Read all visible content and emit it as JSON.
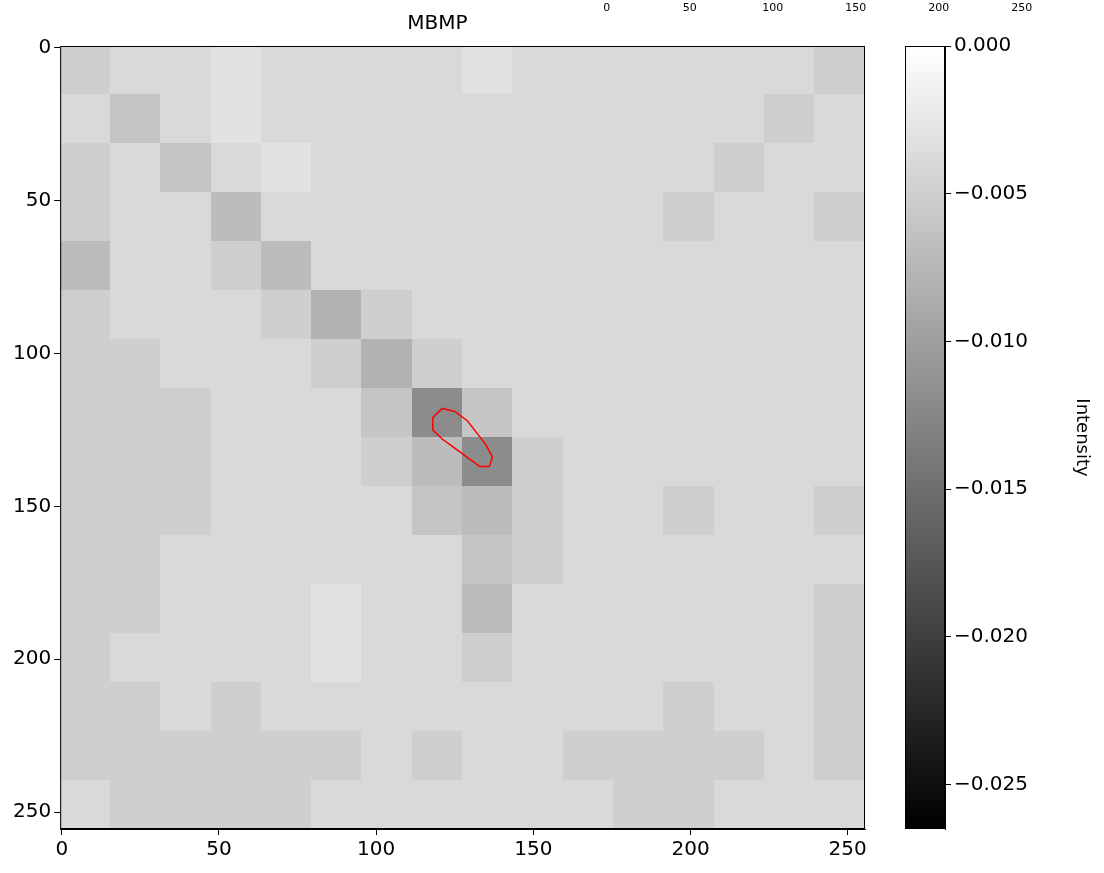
{
  "chart_data": {
    "type": "heatmap",
    "title": "MBMP",
    "xlim": [
      -0.5,
      255.5
    ],
    "ylim": [
      255.5,
      -0.5
    ],
    "xticks": [
      0,
      50,
      100,
      150,
      200,
      250
    ],
    "yticks": [
      0,
      50,
      100,
      150,
      200,
      250
    ],
    "x2lim": [
      -0.5,
      255.5
    ],
    "x2ticks": [
      0,
      50,
      100,
      150,
      200,
      250
    ],
    "grid": false,
    "cells": {
      "x_edges": [
        -0.5,
        15.5,
        31.5,
        47.5,
        63.5,
        79.5,
        95.5,
        111.5,
        127.5,
        143.5,
        159.5,
        175.5,
        191.5,
        207.5,
        223.5,
        239.5,
        255.5
      ],
      "y_edges": [
        -0.5,
        15.5,
        31.5,
        47.5,
        63.5,
        79.5,
        95.5,
        111.5,
        127.5,
        143.5,
        159.5,
        175.5,
        191.5,
        207.5,
        223.5,
        239.5,
        255.5
      ],
      "values": [
        [
          -0.005,
          -0.004,
          -0.004,
          -0.003,
          -0.004,
          -0.004,
          -0.004,
          -0.004,
          -0.003,
          -0.004,
          -0.004,
          -0.004,
          -0.004,
          -0.004,
          -0.004,
          -0.005
        ],
        [
          -0.004,
          -0.006,
          -0.004,
          -0.003,
          -0.004,
          -0.004,
          -0.004,
          -0.004,
          -0.004,
          -0.004,
          -0.004,
          -0.004,
          -0.004,
          -0.004,
          -0.005,
          -0.004
        ],
        [
          -0.005,
          -0.004,
          -0.006,
          -0.004,
          -0.003,
          -0.004,
          -0.004,
          -0.004,
          -0.004,
          -0.004,
          -0.004,
          -0.004,
          -0.004,
          -0.005,
          -0.004,
          -0.004
        ],
        [
          -0.005,
          -0.004,
          -0.004,
          -0.007,
          -0.004,
          -0.004,
          -0.004,
          -0.004,
          -0.004,
          -0.004,
          -0.004,
          -0.004,
          -0.005,
          -0.004,
          -0.004,
          -0.005
        ],
        [
          -0.007,
          -0.004,
          -0.004,
          -0.005,
          -0.007,
          -0.004,
          -0.004,
          -0.004,
          -0.004,
          -0.004,
          -0.004,
          -0.004,
          -0.004,
          -0.004,
          -0.004,
          -0.004
        ],
        [
          -0.005,
          -0.004,
          -0.004,
          -0.004,
          -0.005,
          -0.008,
          -0.005,
          -0.004,
          -0.004,
          -0.004,
          -0.004,
          -0.004,
          -0.004,
          -0.004,
          -0.004,
          -0.004
        ],
        [
          -0.005,
          -0.005,
          -0.004,
          -0.004,
          -0.004,
          -0.005,
          -0.008,
          -0.005,
          -0.004,
          -0.004,
          -0.004,
          -0.004,
          -0.004,
          -0.004,
          -0.004,
          -0.004
        ],
        [
          -0.005,
          -0.005,
          -0.005,
          -0.004,
          -0.004,
          -0.004,
          -0.006,
          -0.012,
          -0.006,
          -0.004,
          -0.004,
          -0.004,
          -0.004,
          -0.004,
          -0.004,
          -0.004
        ],
        [
          -0.005,
          -0.005,
          -0.005,
          -0.004,
          -0.004,
          -0.004,
          -0.005,
          -0.007,
          -0.012,
          -0.005,
          -0.004,
          -0.004,
          -0.004,
          -0.004,
          -0.004,
          -0.004
        ],
        [
          -0.005,
          -0.005,
          -0.005,
          -0.004,
          -0.004,
          -0.004,
          -0.004,
          -0.006,
          -0.007,
          -0.005,
          -0.004,
          -0.004,
          -0.005,
          -0.004,
          -0.004,
          -0.005
        ],
        [
          -0.005,
          -0.005,
          -0.004,
          -0.004,
          -0.004,
          -0.004,
          -0.004,
          -0.004,
          -0.006,
          -0.005,
          -0.004,
          -0.004,
          -0.004,
          -0.004,
          -0.004,
          -0.004
        ],
        [
          -0.005,
          -0.005,
          -0.004,
          -0.004,
          -0.004,
          -0.003,
          -0.004,
          -0.004,
          -0.007,
          -0.004,
          -0.004,
          -0.004,
          -0.004,
          -0.004,
          -0.004,
          -0.005
        ],
        [
          -0.005,
          -0.004,
          -0.004,
          -0.004,
          -0.004,
          -0.003,
          -0.004,
          -0.004,
          -0.005,
          -0.004,
          -0.004,
          -0.004,
          -0.004,
          -0.004,
          -0.004,
          -0.005
        ],
        [
          -0.005,
          -0.005,
          -0.004,
          -0.005,
          -0.004,
          -0.004,
          -0.004,
          -0.004,
          -0.004,
          -0.004,
          -0.004,
          -0.004,
          -0.005,
          -0.004,
          -0.004,
          -0.005
        ],
        [
          -0.005,
          -0.005,
          -0.005,
          -0.005,
          -0.005,
          -0.005,
          -0.004,
          -0.005,
          -0.004,
          -0.004,
          -0.005,
          -0.005,
          -0.005,
          -0.005,
          -0.004,
          -0.005
        ],
        [
          -0.004,
          -0.005,
          -0.005,
          -0.005,
          -0.005,
          -0.004,
          -0.004,
          -0.004,
          -0.004,
          -0.004,
          -0.004,
          -0.005,
          -0.005,
          -0.004,
          -0.004,
          -0.004
        ]
      ]
    },
    "contour": {
      "color": "#ff0000",
      "x": [
        118,
        121,
        125,
        129,
        132,
        135,
        137,
        136,
        133,
        129,
        125,
        121,
        118,
        118
      ],
      "y": [
        121,
        118,
        119,
        122,
        126,
        130,
        134,
        137,
        137,
        134,
        131,
        128,
        125,
        121
      ]
    },
    "colorbar": {
      "label": "Intensity",
      "ylim": [
        -0.0265,
        0
      ],
      "yticks": [
        {
          "value": 0,
          "label": "0.000"
        },
        {
          "value": -0.005,
          "label": "−0.005"
        },
        {
          "value": -0.01,
          "label": "−0.010"
        },
        {
          "value": -0.015,
          "label": "−0.015"
        },
        {
          "value": -0.02,
          "label": "−0.020"
        },
        {
          "value": -0.025,
          "label": "−0.025"
        }
      ]
    }
  }
}
